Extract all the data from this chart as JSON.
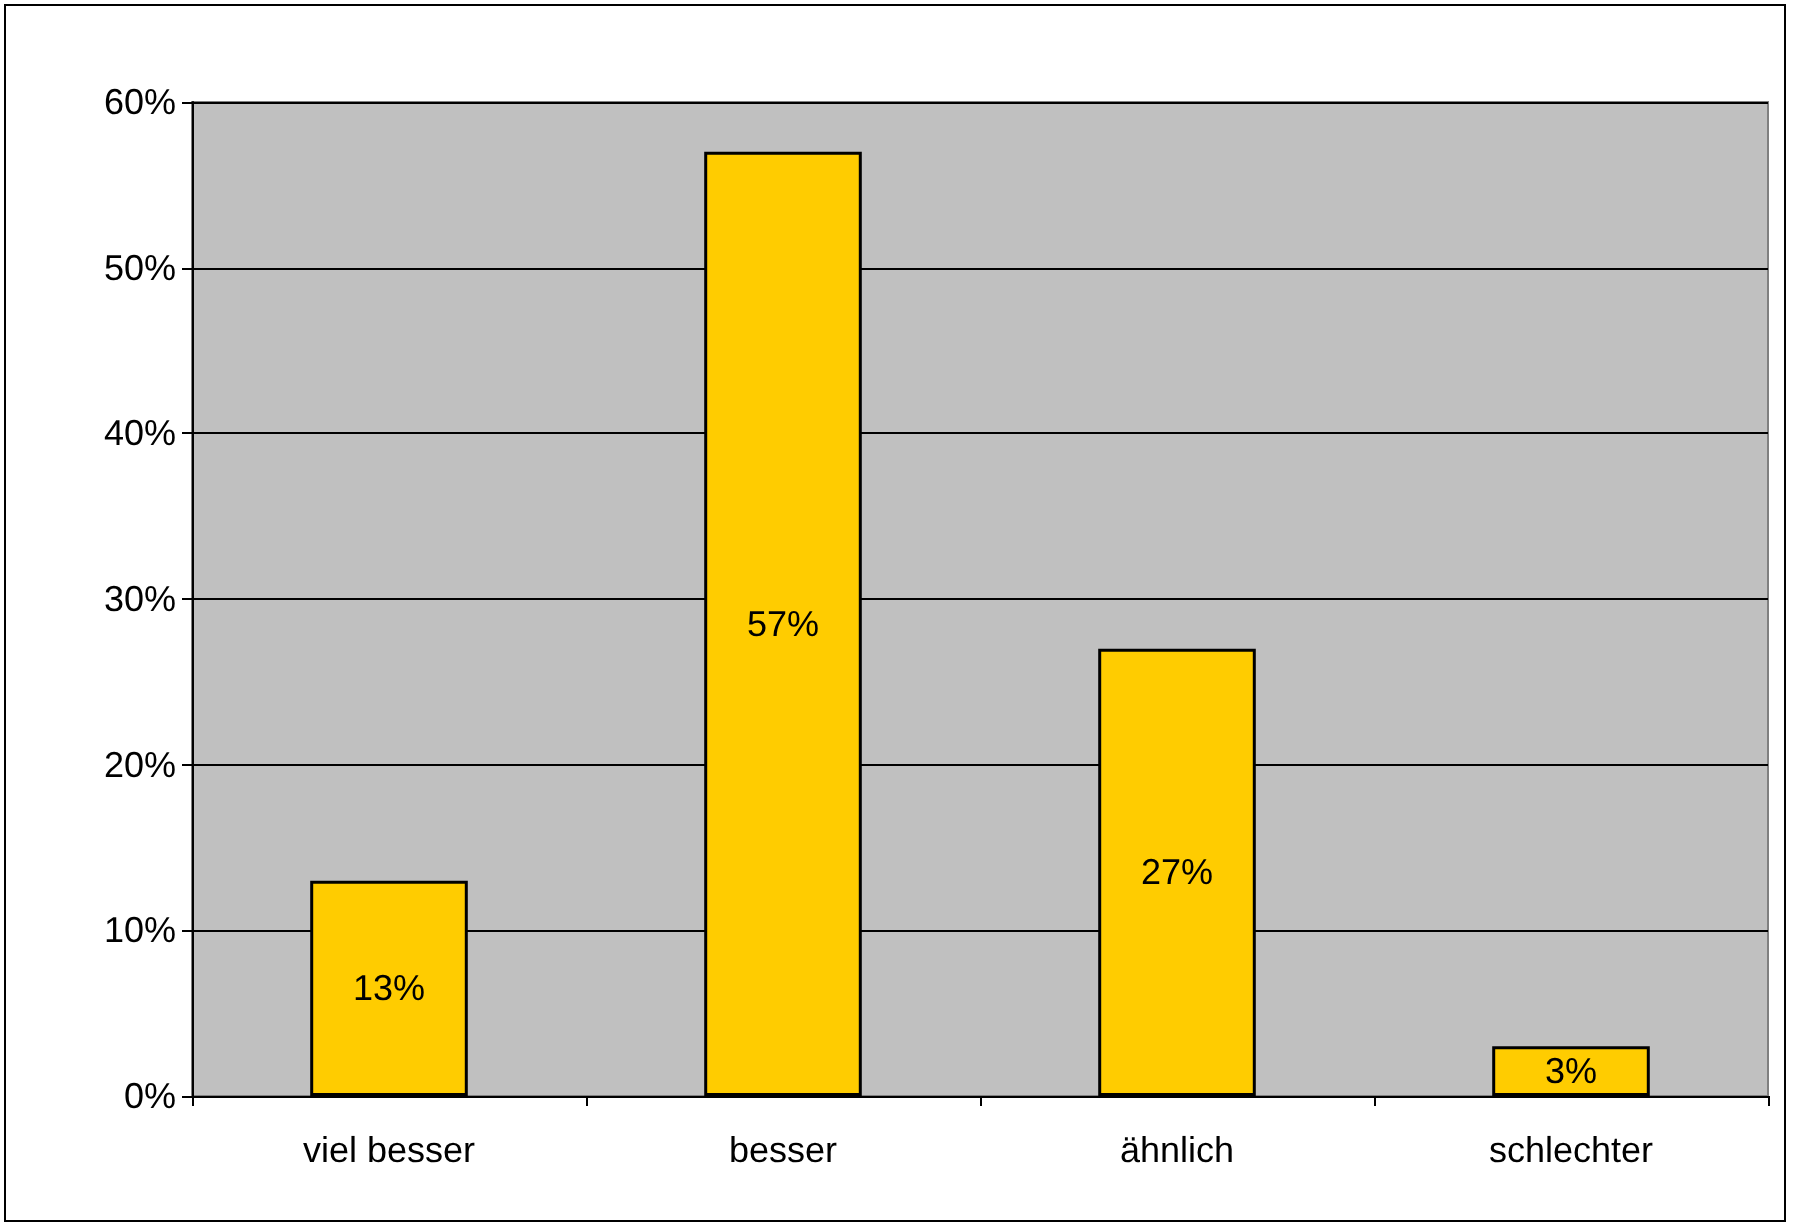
{
  "chart_data": {
    "type": "bar",
    "categories": [
      "viel besser",
      "besser",
      "ähnlich",
      "schlechter"
    ],
    "values": [
      13,
      57,
      27,
      3
    ],
    "value_labels": [
      "13%",
      "57%",
      "27%",
      "3%"
    ],
    "color": "#ffcc00",
    "ylim": [
      0,
      60
    ],
    "yticks": [
      {
        "value": 0,
        "label": "0%"
      },
      {
        "value": 10,
        "label": "10%"
      },
      {
        "value": 20,
        "label": "20%"
      },
      {
        "value": 30,
        "label": "30%"
      },
      {
        "value": 40,
        "label": "40%"
      },
      {
        "value": 50,
        "label": "50%"
      },
      {
        "value": 60,
        "label": "60%"
      }
    ],
    "grid": "y"
  }
}
